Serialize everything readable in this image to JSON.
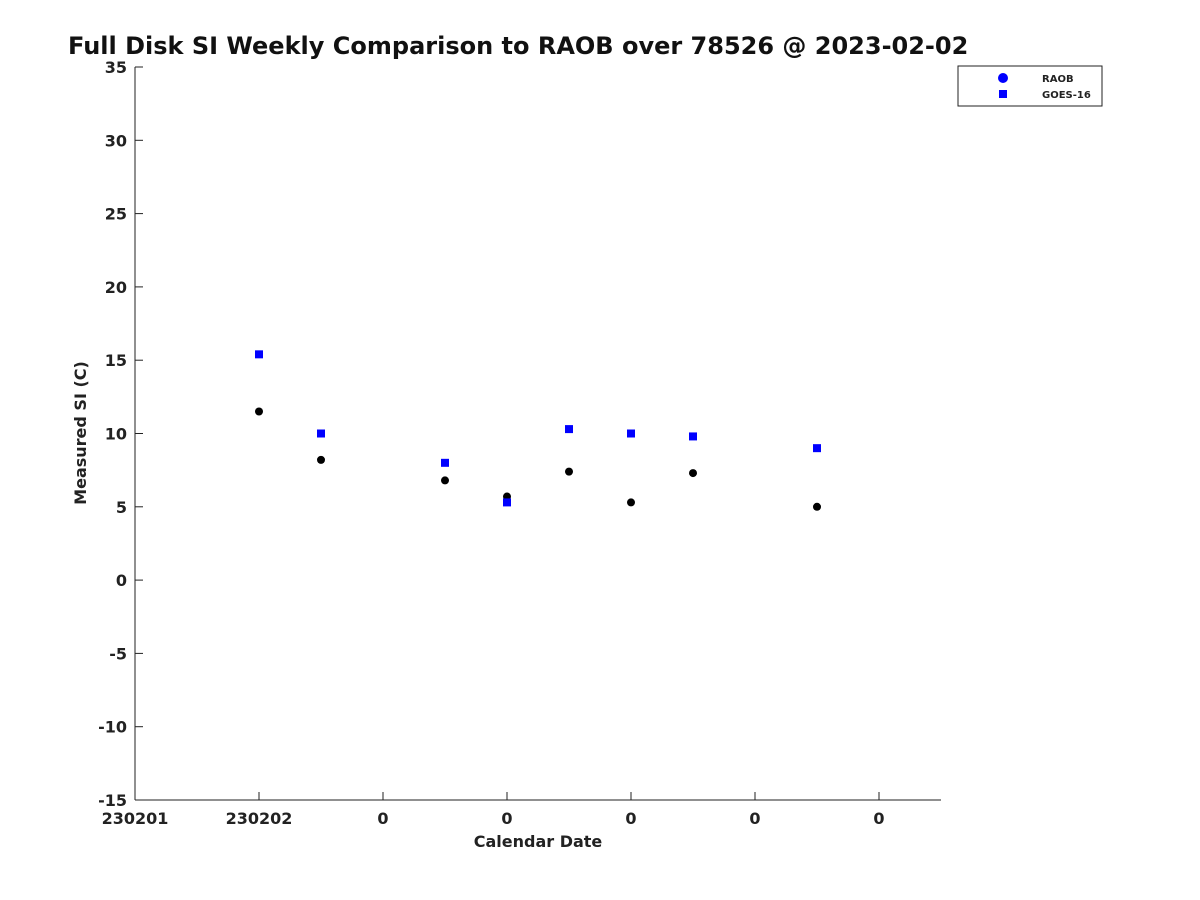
{
  "chart_data": {
    "type": "scatter",
    "title": "Full Disk SI Weekly Comparison to RAOB over 78526 @ 2023-02-02",
    "xlabel": "Calendar Date",
    "ylabel": "Measured SI (C)",
    "ylim": [
      -15,
      35
    ],
    "yticks": [
      -15,
      -10,
      -5,
      0,
      5,
      10,
      15,
      20,
      25,
      30,
      35
    ],
    "xlim": [
      0,
      6.5
    ],
    "xticks": [
      0,
      1,
      2,
      3,
      4,
      5,
      6
    ],
    "xtick_labels": [
      "230201",
      "230202",
      "0",
      "0",
      "0",
      "0",
      "0"
    ],
    "grid": false,
    "legend_position": "top-right",
    "series": [
      {
        "name": "RAOB",
        "marker": "circle",
        "color": "#000000",
        "legend_color": "#0000ff",
        "x": [
          1.0,
          1.5,
          2.5,
          3.0,
          3.5,
          4.0,
          4.5,
          5.5
        ],
        "y": [
          11.5,
          8.2,
          6.8,
          5.7,
          7.4,
          5.3,
          7.3,
          5.0
        ]
      },
      {
        "name": "GOES-16",
        "marker": "square",
        "color": "#0000ff",
        "legend_color": "#0000ff",
        "x": [
          1.0,
          1.5,
          2.5,
          3.0,
          3.5,
          4.0,
          4.5,
          5.5
        ],
        "y": [
          15.4,
          10.0,
          8.0,
          5.3,
          10.3,
          10.0,
          9.8,
          9.0
        ]
      }
    ]
  }
}
